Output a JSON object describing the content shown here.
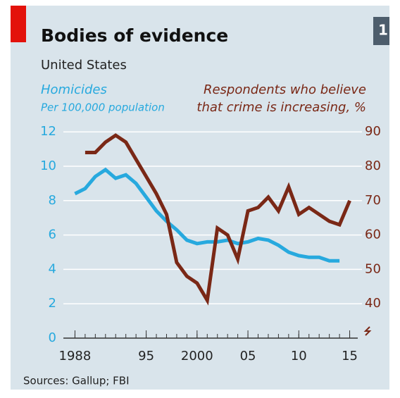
{
  "chart_data": {
    "type": "line",
    "chart_number": "1",
    "title": "Bodies of evidence",
    "subtitle": "United States",
    "y_label": "Homicides",
    "y_sublabel": "Per 100,000 population",
    "y2_label_lines": [
      "Respondents who believe",
      "that crime is increasing, %"
    ],
    "source": "Sources: Gallup; FBI",
    "x": [
      1988,
      1989,
      1990,
      1991,
      1992,
      1993,
      1994,
      1995,
      1996,
      1997,
      1998,
      1999,
      2000,
      2001,
      2002,
      2003,
      2004,
      2005,
      2006,
      2007,
      2008,
      2009,
      2010,
      2011,
      2012,
      2013,
      2014,
      2015
    ],
    "xlim": [
      1987,
      2016
    ],
    "xticks": [
      1988,
      {
        "value": 1995,
        "label": "95"
      },
      2000,
      {
        "value": 2005,
        "label": "05"
      },
      {
        "value": 2010,
        "label": "10"
      },
      {
        "value": 2015,
        "label": "15"
      }
    ],
    "ylim": [
      0,
      12
    ],
    "yticks": [
      0,
      2,
      4,
      6,
      8,
      10,
      12
    ],
    "y2lim": [
      30,
      90
    ],
    "y2ticks": [
      40,
      50,
      60,
      70,
      80,
      90
    ],
    "grid": true,
    "series": [
      {
        "name": "Homicides",
        "color": "#27a9de",
        "values": [
          8.4,
          8.7,
          9.4,
          9.8,
          9.3,
          9.5,
          9.0,
          8.2,
          7.4,
          6.8,
          6.3,
          5.7,
          5.5,
          5.6,
          5.6,
          5.7,
          5.5,
          5.6,
          5.8,
          5.7,
          5.4,
          5.0,
          4.8,
          4.7,
          4.7,
          4.5,
          4.5,
          null
        ]
      },
      {
        "name": "Respondents who believe that crime is increasing, %",
        "color": "#7a2816",
        "axis": "y2",
        "values": [
          null,
          84,
          84,
          87,
          89,
          87,
          82,
          77,
          72,
          66,
          52,
          48,
          46,
          41,
          62,
          60,
          53,
          67,
          68,
          71,
          67,
          74,
          66,
          68,
          66,
          64,
          63,
          70
        ]
      }
    ]
  }
}
